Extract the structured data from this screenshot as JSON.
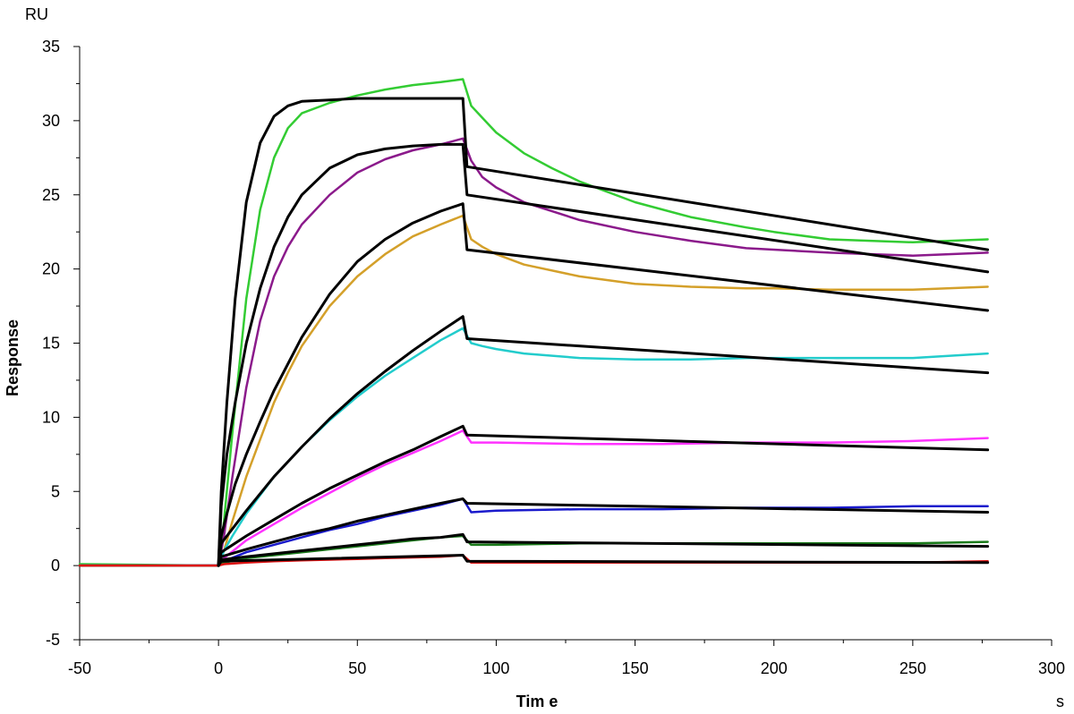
{
  "chart_data": {
    "type": "line",
    "y_unit": "RU",
    "x_unit": "s",
    "xlabel": "Tim e",
    "ylabel": "Response",
    "xlim": [
      -50,
      300
    ],
    "ylim": [
      -5,
      35
    ],
    "x_ticks": [
      -50,
      0,
      50,
      100,
      150,
      200,
      250,
      300
    ],
    "y_ticks": [
      -5,
      0,
      5,
      10,
      15,
      20,
      25,
      30,
      35
    ],
    "grid": false,
    "legend": "none",
    "series": [
      {
        "color": "#33cc33",
        "x": [
          -50,
          0,
          2,
          5,
          10,
          15,
          20,
          25,
          30,
          40,
          50,
          60,
          70,
          80,
          88,
          91,
          95,
          100,
          110,
          120,
          130,
          150,
          170,
          190,
          200,
          220,
          250,
          277
        ],
        "y": [
          0.1,
          0,
          3,
          9,
          18,
          24,
          27.5,
          29.5,
          30.5,
          31.2,
          31.7,
          32.1,
          32.4,
          32.6,
          32.8,
          31.0,
          30.2,
          29.2,
          27.8,
          26.8,
          25.9,
          24.5,
          23.5,
          22.8,
          22.5,
          22.0,
          21.8,
          22.0
        ]
      },
      {
        "color": "#8b1a8b",
        "x": [
          -50,
          0,
          2,
          5,
          10,
          15,
          20,
          25,
          30,
          40,
          50,
          60,
          70,
          80,
          88,
          91,
          95,
          100,
          110,
          130,
          150,
          170,
          190,
          220,
          250,
          277
        ],
        "y": [
          0,
          0,
          2,
          6,
          12,
          16.5,
          19.5,
          21.5,
          23,
          25,
          26.5,
          27.4,
          28,
          28.4,
          28.8,
          27.3,
          26.2,
          25.5,
          24.5,
          23.3,
          22.5,
          21.9,
          21.4,
          21.1,
          20.9,
          21.1
        ]
      },
      {
        "color": "#d4a02a",
        "x": [
          -50,
          0,
          2,
          5,
          10,
          15,
          20,
          25,
          30,
          40,
          50,
          60,
          70,
          80,
          88,
          91,
          95,
          100,
          110,
          130,
          150,
          170,
          190,
          200,
          220,
          250,
          277
        ],
        "y": [
          0,
          0,
          1,
          3,
          6,
          8.5,
          11,
          13,
          14.8,
          17.5,
          19.5,
          21,
          22.2,
          23,
          23.6,
          22,
          21.5,
          21,
          20.3,
          19.5,
          19,
          18.8,
          18.7,
          18.7,
          18.6,
          18.6,
          18.8
        ]
      },
      {
        "color": "#22cccc",
        "x": [
          -50,
          0,
          2,
          5,
          10,
          20,
          30,
          40,
          50,
          60,
          70,
          80,
          88,
          91,
          95,
          100,
          110,
          130,
          150,
          170,
          190,
          220,
          250,
          277
        ],
        "y": [
          0,
          0,
          1,
          2,
          3.5,
          6,
          8,
          9.8,
          11.4,
          12.8,
          14,
          15.2,
          16,
          15,
          14.8,
          14.6,
          14.3,
          14.0,
          13.9,
          13.9,
          14.0,
          14.0,
          14.0,
          14.3
        ]
      },
      {
        "color": "#ff33ff",
        "x": [
          -50,
          0,
          2,
          10,
          20,
          30,
          40,
          50,
          60,
          70,
          80,
          88,
          91,
          100,
          130,
          160,
          190,
          220,
          250,
          277
        ],
        "y": [
          0,
          0,
          0.5,
          1.7,
          2.8,
          3.9,
          4.9,
          5.9,
          6.8,
          7.6,
          8.4,
          9.1,
          8.3,
          8.3,
          8.2,
          8.2,
          8.3,
          8.3,
          8.4,
          8.6
        ]
      },
      {
        "color": "#1a1acc",
        "x": [
          -50,
          0,
          2,
          10,
          20,
          30,
          40,
          50,
          60,
          70,
          80,
          88,
          91,
          100,
          130,
          160,
          190,
          220,
          250,
          277
        ],
        "y": [
          0,
          0,
          0.3,
          0.9,
          1.4,
          1.9,
          2.4,
          2.8,
          3.3,
          3.7,
          4.1,
          4.5,
          3.6,
          3.7,
          3.8,
          3.8,
          3.9,
          3.9,
          4.0,
          4.0
        ]
      },
      {
        "color": "#1a7a1a",
        "x": [
          -50,
          0,
          2,
          10,
          20,
          30,
          40,
          50,
          60,
          70,
          80,
          88,
          91,
          100,
          130,
          160,
          190,
          220,
          250,
          277
        ],
        "y": [
          0,
          0,
          0.2,
          0.5,
          0.7,
          0.9,
          1.1,
          1.3,
          1.5,
          1.7,
          1.9,
          2.0,
          1.4,
          1.4,
          1.5,
          1.5,
          1.5,
          1.5,
          1.5,
          1.6
        ]
      },
      {
        "color": "#dd1111",
        "x": [
          -50,
          0,
          2,
          10,
          20,
          30,
          40,
          50,
          60,
          70,
          80,
          88,
          91,
          100,
          130,
          160,
          190,
          220,
          250,
          277
        ],
        "y": [
          0,
          0,
          0.1,
          0.2,
          0.3,
          0.35,
          0.4,
          0.45,
          0.5,
          0.55,
          0.6,
          0.7,
          0.2,
          0.2,
          0.2,
          0.2,
          0.2,
          0.2,
          0.2,
          0.3
        ]
      },
      {
        "color": "#000000",
        "x": [
          0,
          1,
          3,
          6,
          10,
          15,
          20,
          25,
          30,
          40,
          50,
          60,
          70,
          80,
          88,
          89.5,
          277
        ],
        "y": [
          0,
          5,
          11,
          18,
          24.5,
          28.5,
          30.3,
          31,
          31.3,
          31.4,
          31.5,
          31.5,
          31.5,
          31.5,
          31.5,
          26.9,
          21.3
        ]
      },
      {
        "color": "#000000",
        "x": [
          0,
          1,
          3,
          6,
          10,
          15,
          20,
          25,
          30,
          40,
          50,
          60,
          70,
          80,
          88,
          89.5,
          277
        ],
        "y": [
          0,
          4,
          7.5,
          11,
          15,
          18.7,
          21.5,
          23.5,
          25,
          26.8,
          27.7,
          28.1,
          28.3,
          28.4,
          28.4,
          25,
          19.8
        ]
      },
      {
        "color": "#000000",
        "x": [
          0,
          1,
          3,
          6,
          10,
          15,
          20,
          30,
          40,
          50,
          60,
          70,
          80,
          88,
          89.5,
          277
        ],
        "y": [
          0,
          2,
          3.5,
          5.5,
          7.5,
          9.7,
          11.8,
          15.4,
          18.3,
          20.5,
          22,
          23.1,
          23.9,
          24.4,
          21.3,
          17.2
        ]
      },
      {
        "color": "#000000",
        "x": [
          0,
          1,
          10,
          20,
          30,
          40,
          50,
          60,
          70,
          80,
          88,
          89.5,
          277
        ],
        "y": [
          0,
          1.5,
          3.7,
          6,
          8,
          9.9,
          11.6,
          13.1,
          14.5,
          15.8,
          16.8,
          15.3,
          13.0
        ]
      },
      {
        "color": "#000000",
        "x": [
          0,
          1,
          10,
          20,
          30,
          40,
          50,
          60,
          70,
          80,
          88,
          89.5,
          277
        ],
        "y": [
          0,
          0.9,
          2,
          3.1,
          4.2,
          5.2,
          6.1,
          7,
          7.8,
          8.7,
          9.4,
          8.8,
          7.8
        ]
      },
      {
        "color": "#000000",
        "x": [
          0,
          1,
          10,
          20,
          30,
          40,
          50,
          60,
          70,
          80,
          88,
          89.5,
          277
        ],
        "y": [
          0,
          0.6,
          1.1,
          1.6,
          2.1,
          2.5,
          3,
          3.4,
          3.8,
          4.2,
          4.5,
          4.2,
          3.6
        ]
      },
      {
        "color": "#000000",
        "x": [
          0,
          1,
          10,
          20,
          30,
          40,
          50,
          60,
          70,
          80,
          88,
          89.5,
          277
        ],
        "y": [
          0,
          0.4,
          0.6,
          0.8,
          1.0,
          1.2,
          1.4,
          1.6,
          1.8,
          1.9,
          2.1,
          1.6,
          1.3
        ]
      },
      {
        "color": "#000000",
        "x": [
          0,
          1,
          88,
          89.5,
          277
        ],
        "y": [
          0,
          0.3,
          0.7,
          0.3,
          0.2
        ]
      }
    ]
  }
}
